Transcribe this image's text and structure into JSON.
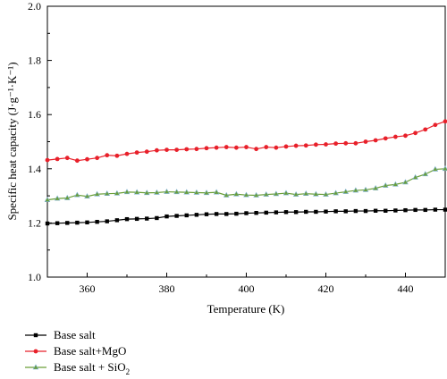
{
  "chart_data": {
    "type": "line",
    "title": "",
    "xlabel": "Temperature (K)",
    "ylabel": "Specific heat capacity (J·g⁻¹·K⁻¹)",
    "xlim": [
      350,
      450
    ],
    "ylim": [
      1.0,
      2.0
    ],
    "x_ticks": [
      360,
      380,
      400,
      420,
      440
    ],
    "x_tick_labels": [
      "360",
      "380",
      "400",
      "420",
      "440"
    ],
    "y_ticks": [
      1.0,
      1.2,
      1.4,
      1.6,
      1.8,
      2.0
    ],
    "y_tick_labels": [
      "1.0",
      "1.2",
      "1.4",
      "1.6",
      "1.8",
      "2.0"
    ],
    "grid": false,
    "legend_position": "bottom-left, outside plot",
    "series": [
      {
        "name": "Base salt",
        "color": "#000000",
        "marker": "square",
        "x": [
          350,
          352.5,
          355,
          357.5,
          360,
          362.5,
          365,
          367.5,
          370,
          372.5,
          375,
          377.5,
          380,
          382.5,
          385,
          387.5,
          390,
          392.5,
          395,
          397.5,
          400,
          402.5,
          405,
          407.5,
          410,
          412.5,
          415,
          417.5,
          420,
          422.5,
          425,
          427.5,
          430,
          432.5,
          435,
          437.5,
          440,
          442.5,
          445,
          447.5,
          450
        ],
        "y": [
          1.198,
          1.199,
          1.2,
          1.201,
          1.202,
          1.204,
          1.206,
          1.21,
          1.214,
          1.215,
          1.216,
          1.218,
          1.224,
          1.226,
          1.228,
          1.23,
          1.232,
          1.233,
          1.233,
          1.234,
          1.236,
          1.237,
          1.238,
          1.239,
          1.24,
          1.24,
          1.241,
          1.241,
          1.242,
          1.243,
          1.243,
          1.244,
          1.244,
          1.245,
          1.245,
          1.246,
          1.247,
          1.248,
          1.248,
          1.249,
          1.249
        ]
      },
      {
        "name": "Base salt+MgO",
        "color": "#e8202a",
        "marker": "circle",
        "x": [
          350,
          352.5,
          355,
          357.5,
          360,
          362.5,
          365,
          367.5,
          370,
          372.5,
          375,
          377.5,
          380,
          382.5,
          385,
          387.5,
          390,
          392.5,
          395,
          397.5,
          400,
          402.5,
          405,
          407.5,
          410,
          412.5,
          415,
          417.5,
          420,
          422.5,
          425,
          427.5,
          430,
          432.5,
          435,
          437.5,
          440,
          442.5,
          445,
          447.5,
          450
        ],
        "y": [
          1.432,
          1.436,
          1.44,
          1.43,
          1.435,
          1.44,
          1.45,
          1.448,
          1.455,
          1.46,
          1.463,
          1.468,
          1.47,
          1.47,
          1.472,
          1.473,
          1.476,
          1.478,
          1.48,
          1.478,
          1.48,
          1.473,
          1.48,
          1.478,
          1.482,
          1.485,
          1.486,
          1.489,
          1.49,
          1.493,
          1.494,
          1.494,
          1.5,
          1.505,
          1.512,
          1.518,
          1.522,
          1.532,
          1.545,
          1.562,
          1.575
        ]
      },
      {
        "name": "Base salt + SiO₂",
        "color": "#6a9f38",
        "marker": "triangle",
        "x": [
          350,
          352.5,
          355,
          357.5,
          360,
          362.5,
          365,
          367.5,
          370,
          372.5,
          375,
          377.5,
          380,
          382.5,
          385,
          387.5,
          390,
          392.5,
          395,
          397.5,
          400,
          402.5,
          405,
          407.5,
          410,
          412.5,
          415,
          417.5,
          420,
          422.5,
          425,
          427.5,
          430,
          432.5,
          435,
          437.5,
          440,
          442.5,
          445,
          447.5,
          450
        ],
        "y": [
          1.285,
          1.29,
          1.292,
          1.303,
          1.298,
          1.306,
          1.308,
          1.309,
          1.314,
          1.313,
          1.311,
          1.312,
          1.315,
          1.314,
          1.313,
          1.312,
          1.311,
          1.313,
          1.302,
          1.306,
          1.303,
          1.302,
          1.305,
          1.307,
          1.31,
          1.305,
          1.308,
          1.306,
          1.305,
          1.31,
          1.315,
          1.32,
          1.322,
          1.328,
          1.338,
          1.342,
          1.35,
          1.368,
          1.38,
          1.398,
          1.4
        ]
      }
    ],
    "legend": [
      {
        "label_main": "Base salt",
        "label_sub": ""
      },
      {
        "label_main": "Base salt+MgO",
        "label_sub": ""
      },
      {
        "label_main": "Base salt + SiO",
        "label_sub": "2"
      }
    ]
  }
}
